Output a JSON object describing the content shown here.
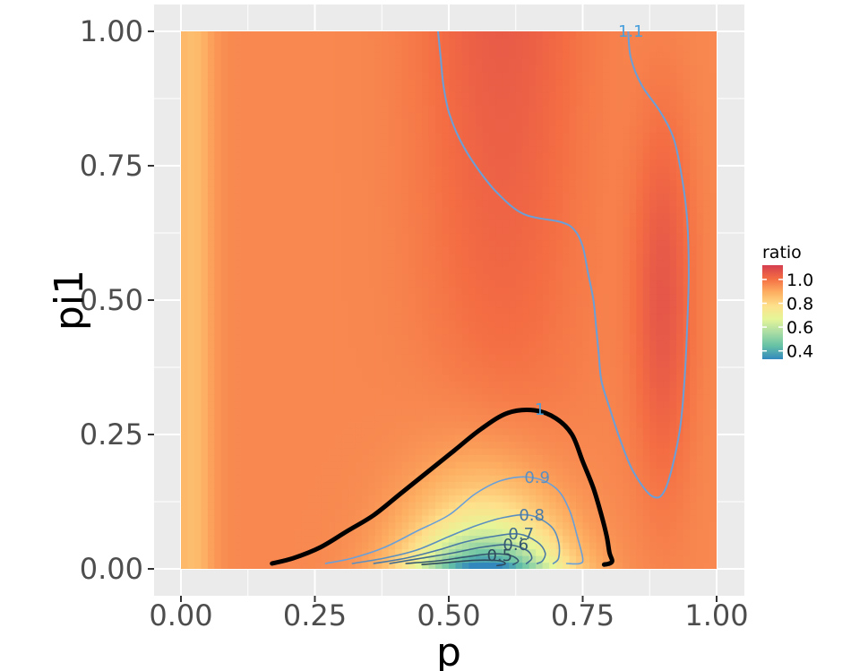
{
  "chart_data": {
    "type": "heatmap",
    "xlabel": "p",
    "ylabel": "pi1",
    "xlim": [
      0,
      1
    ],
    "ylim": [
      0,
      1
    ],
    "x_ticks": [
      "0.00",
      "0.25",
      "0.50",
      "0.75",
      "1.00"
    ],
    "y_ticks": [
      "0.00",
      "0.25",
      "0.50",
      "0.75",
      "1.00"
    ],
    "grid": true,
    "legend": {
      "title": "ratio",
      "placement": "right",
      "labels": [
        "1.0",
        "0.8",
        "0.6",
        "0.4"
      ],
      "values": [
        1.0,
        0.8,
        0.6,
        0.4
      ],
      "range": [
        0.33,
        1.12
      ],
      "colors": [
        "#3288bd",
        "#66c2a5",
        "#abdda4",
        "#e6f598",
        "#fee08b",
        "#fdae61",
        "#f46d43",
        "#d53e4f"
      ]
    },
    "contours": [
      {
        "level": "1.1",
        "color": "#6a9fd8",
        "width": 2,
        "points": [
          [
            0.48,
            1.0
          ],
          [
            0.485,
            0.95
          ],
          [
            0.49,
            0.9
          ],
          [
            0.5,
            0.85
          ],
          [
            0.52,
            0.8
          ],
          [
            0.55,
            0.75
          ],
          [
            0.59,
            0.7
          ],
          [
            0.64,
            0.66
          ],
          [
            0.71,
            0.645
          ],
          [
            0.735,
            0.63
          ],
          [
            0.75,
            0.6
          ],
          [
            0.76,
            0.55
          ],
          [
            0.77,
            0.5
          ],
          [
            0.775,
            0.45
          ],
          [
            0.78,
            0.4
          ],
          [
            0.785,
            0.35
          ],
          [
            0.8,
            0.3
          ],
          [
            0.82,
            0.24
          ],
          [
            0.845,
            0.18
          ],
          [
            0.88,
            0.135
          ],
          [
            0.905,
            0.15
          ],
          [
            0.93,
            0.25
          ],
          [
            0.94,
            0.35
          ],
          [
            0.945,
            0.45
          ],
          [
            0.948,
            0.55
          ],
          [
            0.945,
            0.65
          ],
          [
            0.935,
            0.73
          ],
          [
            0.92,
            0.8
          ],
          [
            0.895,
            0.85
          ],
          [
            0.86,
            0.9
          ],
          [
            0.84,
            0.95
          ],
          [
            0.835,
            1.0
          ]
        ]
      },
      {
        "level": "1",
        "color": "#000000",
        "width": 5,
        "points": [
          [
            0.17,
            0.01
          ],
          [
            0.21,
            0.02
          ],
          [
            0.26,
            0.04
          ],
          [
            0.31,
            0.07
          ],
          [
            0.36,
            0.1
          ],
          [
            0.41,
            0.14
          ],
          [
            0.46,
            0.18
          ],
          [
            0.51,
            0.22
          ],
          [
            0.56,
            0.26
          ],
          [
            0.61,
            0.29
          ],
          [
            0.66,
            0.295
          ],
          [
            0.7,
            0.28
          ],
          [
            0.73,
            0.25
          ],
          [
            0.75,
            0.2
          ],
          [
            0.77,
            0.15
          ],
          [
            0.785,
            0.1
          ],
          [
            0.795,
            0.06
          ],
          [
            0.8,
            0.03
          ],
          [
            0.805,
            0.015
          ],
          [
            0.8,
            0.01
          ],
          [
            0.79,
            0.008
          ]
        ]
      },
      {
        "level": "0.9",
        "color": "#6a9fd8",
        "width": 1.6,
        "points": [
          [
            0.27,
            0.01
          ],
          [
            0.32,
            0.02
          ],
          [
            0.38,
            0.04
          ],
          [
            0.44,
            0.07
          ],
          [
            0.5,
            0.1
          ],
          [
            0.55,
            0.14
          ],
          [
            0.6,
            0.165
          ],
          [
            0.655,
            0.17
          ],
          [
            0.7,
            0.15
          ],
          [
            0.725,
            0.11
          ],
          [
            0.74,
            0.06
          ],
          [
            0.75,
            0.02
          ],
          [
            0.745,
            0.01
          ],
          [
            0.72,
            0.01
          ]
        ]
      },
      {
        "level": "0.8",
        "color": "#5b8fc0",
        "width": 1.6,
        "points": [
          [
            0.32,
            0.01
          ],
          [
            0.38,
            0.02
          ],
          [
            0.44,
            0.035
          ],
          [
            0.5,
            0.06
          ],
          [
            0.55,
            0.08
          ],
          [
            0.6,
            0.095
          ],
          [
            0.65,
            0.1
          ],
          [
            0.69,
            0.08
          ],
          [
            0.705,
            0.05
          ],
          [
            0.705,
            0.02
          ],
          [
            0.695,
            0.01
          ]
        ]
      },
      {
        "level": "0.7",
        "color": "#4a7aa6",
        "width": 1.6,
        "points": [
          [
            0.36,
            0.01
          ],
          [
            0.42,
            0.02
          ],
          [
            0.48,
            0.035
          ],
          [
            0.53,
            0.05
          ],
          [
            0.58,
            0.06
          ],
          [
            0.63,
            0.065
          ],
          [
            0.665,
            0.05
          ],
          [
            0.68,
            0.03
          ],
          [
            0.675,
            0.015
          ],
          [
            0.665,
            0.01
          ]
        ]
      },
      {
        "level": "0.6",
        "color": "#3f6a8c",
        "width": 1.6,
        "points": [
          [
            0.39,
            0.01
          ],
          [
            0.45,
            0.02
          ],
          [
            0.51,
            0.03
          ],
          [
            0.56,
            0.04
          ],
          [
            0.61,
            0.045
          ],
          [
            0.645,
            0.035
          ],
          [
            0.655,
            0.02
          ],
          [
            0.645,
            0.01
          ]
        ]
      },
      {
        "level": "0.5",
        "color": "#34576f",
        "width": 1.6,
        "points": [
          [
            0.42,
            0.01
          ],
          [
            0.48,
            0.015
          ],
          [
            0.53,
            0.022
          ],
          [
            0.58,
            0.028
          ],
          [
            0.615,
            0.025
          ],
          [
            0.63,
            0.015
          ],
          [
            0.62,
            0.008
          ]
        ]
      },
      {
        "level": "",
        "color": "#2e4a5c",
        "width": 1.6,
        "points": [
          [
            0.45,
            0.008
          ],
          [
            0.5,
            0.012
          ],
          [
            0.55,
            0.016
          ],
          [
            0.595,
            0.015
          ],
          [
            0.605,
            0.009
          ],
          [
            0.59,
            0.006
          ]
        ]
      }
    ],
    "contour_labels": [
      {
        "text": "1.1",
        "x": 0.84,
        "y": 1.0,
        "color": "#4aa0dc"
      },
      {
        "text": "1",
        "x": 0.67,
        "y": 0.297,
        "color": "#4aa0dc"
      },
      {
        "text": "0.9",
        "x": 0.665,
        "y": 0.17,
        "color": "#5b8fc0"
      },
      {
        "text": "0.8",
        "x": 0.655,
        "y": 0.1,
        "color": "#4a7aa6"
      },
      {
        "text": "0.7",
        "x": 0.635,
        "y": 0.065,
        "color": "#3f6a8c"
      },
      {
        "text": "0.6",
        "x": 0.625,
        "y": 0.045,
        "color": "#34576f"
      },
      {
        "text": "0.5",
        "x": 0.595,
        "y": 0.025,
        "color": "#2e4a5c"
      }
    ]
  }
}
